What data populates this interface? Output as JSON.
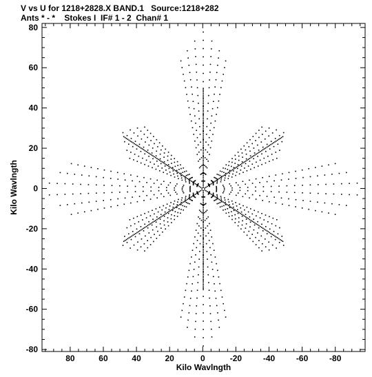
{
  "header": {
    "line1": "V vs U for 1218+2828.X BAND.1   Source:1218+282",
    "line2": "Ants * - *    Stokes I  IF# 1 - 2  Chan# 1"
  },
  "chart_data": {
    "type": "scatter",
    "xlabel": "Kilo Wavlngth",
    "ylabel": "Kilo Wavlngth",
    "xlim": [
      97,
      -98
    ],
    "ylim": [
      -81,
      82
    ],
    "x_ticks": [
      80,
      60,
      40,
      20,
      0,
      -20,
      -40,
      -60,
      -80
    ],
    "y_ticks": [
      80,
      60,
      40,
      20,
      0,
      -20,
      -40,
      -60,
      -80
    ],
    "grid": false,
    "tracks": [
      {
        "from": [
          0,
          0
        ],
        "to": [
          48,
          26
        ],
        "mirror": true,
        "rows": 1,
        "step": 0
      },
      {
        "from": [
          0,
          0
        ],
        "to": [
          -48,
          26
        ],
        "mirror": true,
        "rows": 1,
        "step": 0
      },
      {
        "from": [
          0,
          0
        ],
        "to": [
          0,
          50
        ],
        "mirror": true,
        "rows": 1,
        "step": 0
      }
    ],
    "arm_fans": [
      {
        "angle_deg": 30,
        "inner": 4,
        "outer": 56,
        "spread_deg": 22,
        "rows": 7
      },
      {
        "angle_deg": 150,
        "inner": 4,
        "outer": 56,
        "spread_deg": 22,
        "rows": 7
      },
      {
        "angle_deg": 90,
        "inner": 4,
        "outer": 78,
        "spread_deg": 24,
        "rows": 7
      },
      {
        "angle_deg": 210,
        "inner": 4,
        "outer": 56,
        "spread_deg": 22,
        "rows": 7
      },
      {
        "angle_deg": 330,
        "inner": 4,
        "outer": 56,
        "spread_deg": 22,
        "rows": 7
      },
      {
        "angle_deg": 270,
        "inner": 4,
        "outer": 78,
        "spread_deg": 24,
        "rows": 7
      },
      {
        "angle_deg": 0,
        "inner": 8,
        "outer": 96,
        "spread_deg": 18,
        "rows": 6
      },
      {
        "angle_deg": 180,
        "inner": 8,
        "outer": 96,
        "spread_deg": 18,
        "rows": 6
      }
    ]
  }
}
